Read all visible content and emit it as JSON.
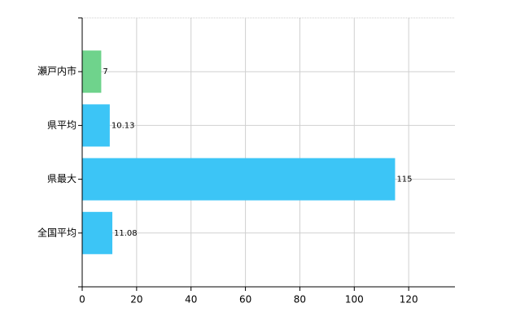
{
  "chart_data": {
    "type": "bar",
    "orientation": "horizontal",
    "categories": [
      "瀬戸内市",
      "県平均",
      "県最大",
      "全国平均"
    ],
    "values": [
      7,
      10.13,
      115,
      11.08
    ],
    "colors": [
      "#6fd38c",
      "#3cc5f6",
      "#3cc5f6",
      "#3cc5f6"
    ],
    "xlim": [
      0,
      137
    ],
    "xticks": [
      0,
      20,
      40,
      60,
      80,
      100,
      120
    ],
    "grid": true
  }
}
